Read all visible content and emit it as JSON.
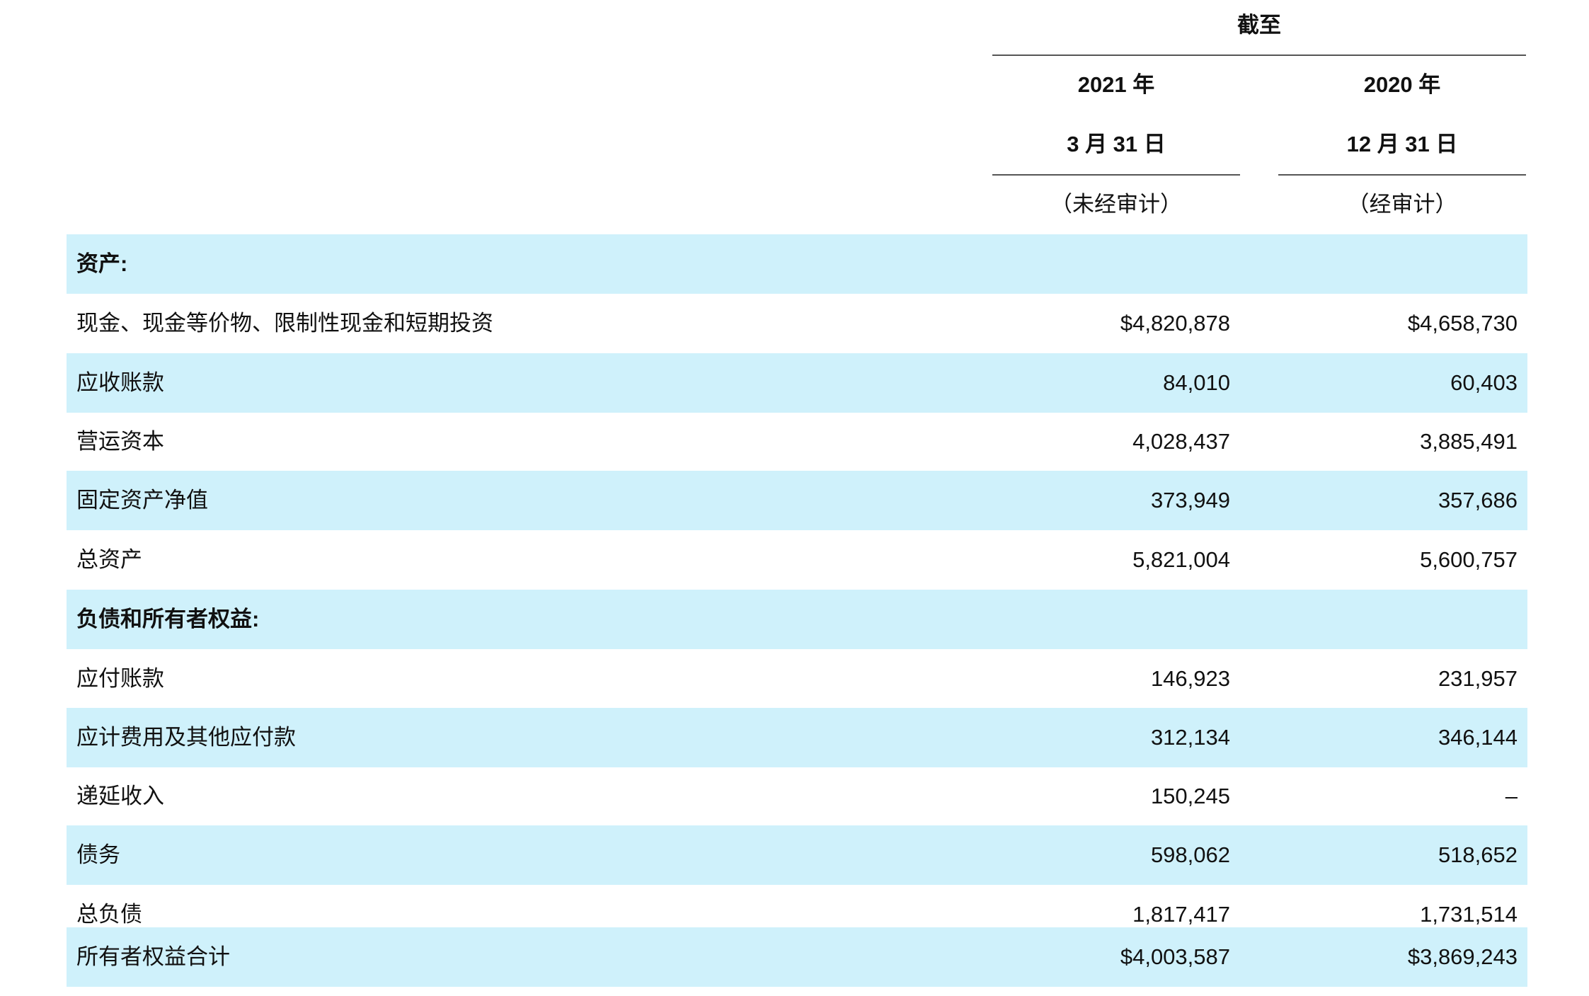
{
  "header": {
    "as_of": "截至",
    "col1": {
      "year": "2021 年",
      "date": "3 月 31 日",
      "note": "（未经审计）"
    },
    "col2": {
      "year": "2020 年",
      "date": "12 月 31 日",
      "note": "（经审计）"
    }
  },
  "rows": [
    {
      "label": "资产:",
      "v1": "",
      "v2": "",
      "bold": true,
      "shade": true
    },
    {
      "label": "现金、现金等价物、限制性现金和短期投资",
      "v1": "$4,820,878",
      "v2": "$4,658,730",
      "shade": false
    },
    {
      "label": "应收账款",
      "v1": "84,010",
      "v2": "60,403",
      "shade": true
    },
    {
      "label": "营运资本",
      "v1": "4,028,437",
      "v2": "3,885,491",
      "shade": false
    },
    {
      "label": "固定资产净值",
      "v1": "373,949",
      "v2": "357,686",
      "shade": true
    },
    {
      "label": "总资产",
      "v1": "5,821,004",
      "v2": "5,600,757",
      "shade": false
    },
    {
      "label": "负债和所有者权益:",
      "v1": "",
      "v2": "",
      "bold": true,
      "shade": true
    },
    {
      "label": "应付账款",
      "v1": "146,923",
      "v2": "231,957",
      "shade": false
    },
    {
      "label": "应计费用及其他应付款",
      "v1": "312,134",
      "v2": "346,144",
      "shade": true
    },
    {
      "label": "递延收入",
      "v1": "150,245",
      "v2": "–",
      "shade": false
    },
    {
      "label": "债务",
      "v1": "598,062",
      "v2": "518,652",
      "shade": true
    },
    {
      "label": "总负债",
      "v1": "1,817,417",
      "v2": "1,731,514",
      "shade": false
    },
    {
      "label": "所有者权益合计",
      "v1": "$4,003,587",
      "v2": "$3,869,243",
      "shade": true
    }
  ]
}
